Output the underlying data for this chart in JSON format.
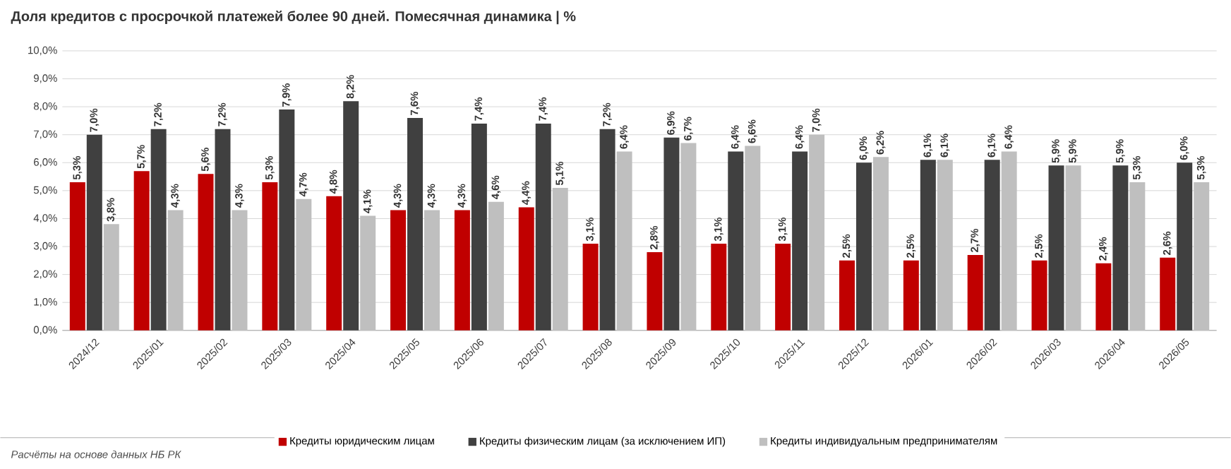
{
  "chart_data": {
    "type": "bar",
    "title": "Доля кредитов с просрочкой платежей более 90 дней. Помесячная динамика | %",
    "categories": [
      "2024/12",
      "2025/01",
      "2025/02",
      "2025/03",
      "2025/04",
      "2025/05",
      "2025/06",
      "2025/07",
      "2025/08",
      "2025/09",
      "2025/10",
      "2025/11",
      "2025/12",
      "2026/01",
      "2026/02",
      "2026/03",
      "2026/04",
      "2026/05"
    ],
    "series": [
      {
        "name": "Кредиты юридическим лицам",
        "color": "#c00000",
        "values": [
          5.3,
          5.7,
          5.6,
          5.3,
          4.8,
          4.3,
          4.3,
          4.4,
          3.1,
          2.8,
          3.1,
          3.1,
          2.5,
          2.5,
          2.7,
          2.5,
          2.4,
          2.6
        ],
        "value_labels": [
          "5,3%",
          "5,7%",
          "5,6%",
          "5,3%",
          "4,8%",
          "4,3%",
          "4,3%",
          "4,4%",
          "3,1%",
          "2,8%",
          "3,1%",
          "3,1%",
          "2,5%",
          "2,5%",
          "2,7%",
          "2,5%",
          "2,4%",
          "2,6%"
        ]
      },
      {
        "name": "Кредиты физическим лицам (за исключением ИП)",
        "color": "#404040",
        "values": [
          7.0,
          7.2,
          7.2,
          7.9,
          8.2,
          7.6,
          7.4,
          7.4,
          7.2,
          6.9,
          6.4,
          6.4,
          6.0,
          6.1,
          6.1,
          5.9,
          5.9,
          6.0
        ],
        "value_labels": [
          "7,0%",
          "7,2%",
          "7,2%",
          "7,9%",
          "8,2%",
          "7,6%",
          "7,4%",
          "7,4%",
          "7,2%",
          "6,9%",
          "6,4%",
          "6,4%",
          "6,0%",
          "6,1%",
          "6,1%",
          "5,9%",
          "5,9%",
          "6,0%"
        ]
      },
      {
        "name": "Кредиты индивидуальным предпринимателям",
        "color": "#bfbfbf",
        "values": [
          3.8,
          4.3,
          4.3,
          4.7,
          4.1,
          4.3,
          4.6,
          5.1,
          6.4,
          6.7,
          6.6,
          7.0,
          6.2,
          6.1,
          6.4,
          5.9,
          5.3,
          5.3
        ],
        "value_labels": [
          "3,8%",
          "4,3%",
          "4,3%",
          "4,7%",
          "4,1%",
          "4,3%",
          "4,6%",
          "5,1%",
          "6,4%",
          "6,7%",
          "6,6%",
          "7,0%",
          "6,2%",
          "6,1%",
          "6,4%",
          "5,9%",
          "5,3%",
          "5,3%"
        ]
      }
    ],
    "ylim": [
      0,
      10
    ],
    "yticks": [
      {
        "value": 0,
        "label": "0,0%"
      },
      {
        "value": 1,
        "label": "1,0%"
      },
      {
        "value": 2,
        "label": "2,0%"
      },
      {
        "value": 3,
        "label": "3,0%"
      },
      {
        "value": 4,
        "label": "4,0%"
      },
      {
        "value": 5,
        "label": "5,0%"
      },
      {
        "value": 6,
        "label": "6,0%"
      },
      {
        "value": 7,
        "label": "7,0%"
      },
      {
        "value": 8,
        "label": "8,0%"
      },
      {
        "value": 9,
        "label": "9,0%"
      },
      {
        "value": 10,
        "label": "10,0%"
      }
    ],
    "grid": "y",
    "legend": "bottom",
    "annotations": [
      "Расчёты на основе данных НБ РК"
    ]
  }
}
